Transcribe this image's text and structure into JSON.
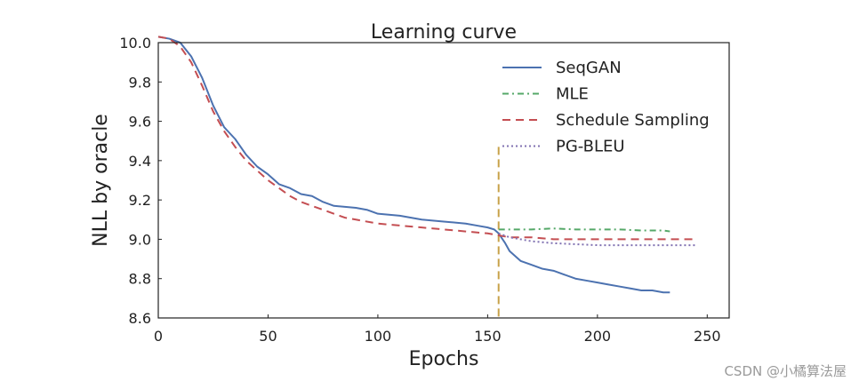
{
  "chart_data": {
    "type": "line",
    "title": "Learning curve",
    "xlabel": "Epochs",
    "ylabel": "NLL by oracle",
    "xlim": [
      0,
      260
    ],
    "ylim": [
      8.6,
      10.0
    ],
    "xticks": [
      0,
      50,
      100,
      150,
      200,
      250
    ],
    "yticks": [
      8.6,
      8.8,
      9.0,
      9.2,
      9.4,
      9.6,
      9.8,
      10.0
    ],
    "xtick_labels": [
      "0",
      "50",
      "100",
      "150",
      "200",
      "250"
    ],
    "ytick_labels": [
      "8.6",
      "8.8",
      "9.0",
      "9.2",
      "9.4",
      "9.6",
      "9.8",
      "10.0"
    ],
    "legend_position": "top-right",
    "vertical_marker": {
      "x": 155,
      "y_top": 9.47,
      "color": "#c8a24a"
    },
    "series": [
      {
        "name": "SeqGAN",
        "color": "#4c72b0",
        "style": "solid",
        "x": [
          0,
          5,
          10,
          15,
          20,
          25,
          30,
          35,
          40,
          45,
          50,
          55,
          60,
          65,
          70,
          75,
          80,
          85,
          90,
          95,
          100,
          110,
          120,
          130,
          140,
          145,
          150,
          153,
          155,
          158,
          160,
          165,
          170,
          175,
          180,
          185,
          190,
          195,
          200,
          205,
          210,
          215,
          220,
          225,
          230,
          233
        ],
        "y": [
          10.03,
          10.02,
          10.0,
          9.93,
          9.82,
          9.68,
          9.57,
          9.51,
          9.43,
          9.37,
          9.33,
          9.28,
          9.26,
          9.23,
          9.22,
          9.19,
          9.17,
          9.165,
          9.16,
          9.15,
          9.13,
          9.12,
          9.1,
          9.09,
          9.08,
          9.07,
          9.06,
          9.05,
          9.03,
          8.98,
          8.94,
          8.89,
          8.87,
          8.85,
          8.84,
          8.82,
          8.8,
          8.79,
          8.78,
          8.77,
          8.76,
          8.75,
          8.74,
          8.74,
          8.73,
          8.73
        ]
      },
      {
        "name": "MLE",
        "color": "#55a868",
        "style": "dashdot",
        "x": [
          155,
          160,
          170,
          180,
          190,
          200,
          210,
          220,
          230,
          233
        ],
        "y": [
          9.05,
          9.05,
          9.05,
          9.055,
          9.05,
          9.05,
          9.05,
          9.045,
          9.045,
          9.04
        ]
      },
      {
        "name": "Schedule Sampling",
        "color": "#c44e52",
        "style": "dashed",
        "x": [
          0,
          5,
          10,
          15,
          20,
          25,
          30,
          35,
          40,
          45,
          50,
          55,
          60,
          65,
          70,
          75,
          80,
          85,
          90,
          100,
          110,
          120,
          130,
          140,
          150,
          155,
          160,
          170,
          180,
          190,
          200,
          210,
          220,
          230,
          240,
          245
        ],
        "y": [
          10.03,
          10.02,
          9.98,
          9.9,
          9.78,
          9.65,
          9.55,
          9.47,
          9.4,
          9.35,
          9.3,
          9.26,
          9.22,
          9.19,
          9.17,
          9.15,
          9.13,
          9.11,
          9.1,
          9.08,
          9.07,
          9.06,
          9.05,
          9.04,
          9.03,
          9.02,
          9.01,
          9.01,
          9.0,
          9.0,
          9.0,
          9.0,
          9.0,
          9.0,
          9.0,
          9.0
        ]
      },
      {
        "name": "PG-BLEU",
        "color": "#8172b2",
        "style": "dotted",
        "x": [
          155,
          160,
          170,
          180,
          190,
          200,
          210,
          220,
          230,
          240,
          245
        ],
        "y": [
          9.03,
          9.01,
          8.99,
          8.98,
          8.975,
          8.97,
          8.97,
          8.97,
          8.97,
          8.97,
          8.97
        ]
      }
    ]
  },
  "watermark": "CSDN @小橘算法屋"
}
